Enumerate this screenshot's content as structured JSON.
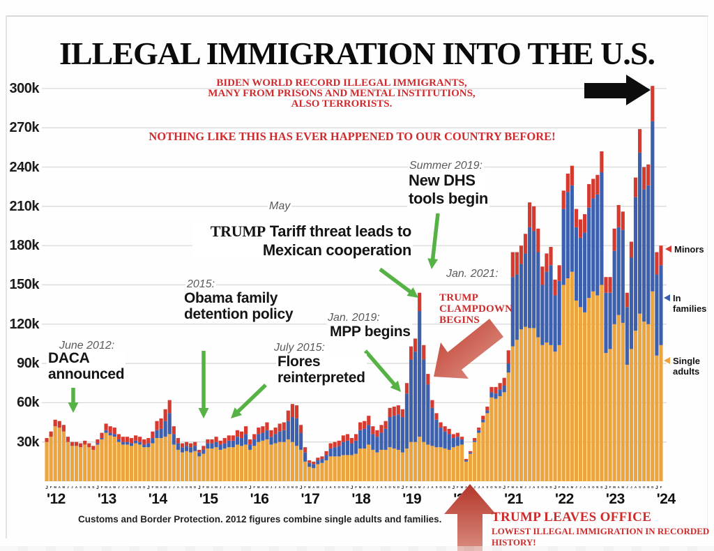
{
  "title": "ILLEGAL IMMIGRATION INTO THE U.S.",
  "header": {
    "line1": "BIDEN WORLD RECORD ILLEGAL IMMIGRANTS,",
    "line2": "MANY FROM PRISONS AND MENTAL INSTITUTIONS,",
    "line3": "ALSO TERRORISTS.",
    "line4": "NOTHING LIKE THIS HAS EVER HAPPENED TO OUR COUNTRY BEFORE!"
  },
  "annotations": {
    "daca": {
      "date": "June 2012:",
      "text": "DACA\nannounced"
    },
    "obama": {
      "date": "2015:",
      "text": "Obama family\ndetention policy"
    },
    "flores": {
      "date": "July 2015:",
      "text": "Flores\nreinterpreted"
    },
    "tariff": {
      "date": "May",
      "lead": "TRUMP",
      "rest": " Tariff threat leads to",
      "line2": "Mexican cooperation"
    },
    "mpp": {
      "date": "Jan. 2019:",
      "text": "MPP begins"
    },
    "dhs": {
      "date": "Summer 2019:",
      "text": "New DHS\ntools begin"
    },
    "jan2021": {
      "date": "Jan. 2021:"
    },
    "clampdown": {
      "text": "TRUMP\nCLAMPDOWN\nBEGINS"
    },
    "leaves_office": {
      "title": "TRUMP LEAVES OFFICE",
      "subtitle": "LOWEST ILLEGAL IMMIGRATION IN RECORDED HISTORY!"
    }
  },
  "legend": {
    "items": [
      {
        "label": "Minors",
        "color": "#d63a2f"
      },
      {
        "label": "In families",
        "color": "#3c60ae"
      },
      {
        "label": "Single adults",
        "color": "#eca43e"
      }
    ]
  },
  "footer": "Customs and Border Protection. 2012 figures combine single adults and families.",
  "colors": {
    "orange": "#eca43e",
    "blue": "#3c60ae",
    "red": "#d63a2f",
    "red_text": "#cd2b2b",
    "green_arrow": "#57b245",
    "grid": "#d9d9d9"
  },
  "chart_data": {
    "type": "bar",
    "stacked": true,
    "title": "ILLEGAL IMMIGRATION INTO THE U.S.",
    "unit": "monthly apprehensions/encounters, thousands",
    "source": "Customs and Border Protection. 2012 figures combine single adults and families.",
    "x_years": [
      "'12",
      "'13",
      "'14",
      "'15",
      "'16",
      "'17",
      "'18",
      "'19",
      "'20",
      "'21",
      "'22",
      "'23",
      "'24"
    ],
    "month_letters": "JFMAMJJASOND",
    "months_in_last_year": 2,
    "ylim": [
      0,
      310
    ],
    "grid": true,
    "y_tick_values": [
      30,
      60,
      90,
      120,
      150,
      180,
      210,
      240,
      270,
      300
    ],
    "y_tick_labels": [
      "30k",
      "60k",
      "90k",
      "120k",
      "150k",
      "180k",
      "210k",
      "240k",
      "270k",
      "300k"
    ],
    "series": [
      {
        "name": "Single adults",
        "color": "#eca43e",
        "values": [
          30,
          34,
          42,
          41,
          38,
          30,
          27,
          27,
          26,
          28,
          26,
          24,
          28,
          32,
          37,
          35,
          34,
          30,
          28,
          28,
          27,
          29,
          28,
          26,
          26,
          29,
          33,
          33,
          34,
          36,
          28,
          24,
          22,
          23,
          22,
          23,
          19,
          21,
          25,
          25,
          26,
          24,
          25,
          26,
          26,
          28,
          27,
          28,
          24,
          27,
          30,
          31,
          32,
          28,
          29,
          30,
          30,
          32,
          30,
          27,
          24,
          15,
          11,
          10,
          13,
          14,
          16,
          19,
          19,
          19,
          20,
          20,
          20,
          21,
          25,
          25,
          28,
          24,
          22,
          24,
          24,
          26,
          25,
          24,
          22,
          25,
          30,
          30,
          34,
          30,
          28,
          27,
          26,
          26,
          25,
          24,
          26,
          27,
          28,
          15,
          21,
          30,
          37,
          45,
          52,
          64,
          63,
          65,
          68,
          83,
          103,
          108,
          116,
          118,
          117,
          117,
          110,
          104,
          106,
          104,
          99,
          104,
          150,
          155,
          160,
          138,
          133,
          129,
          140,
          145,
          142,
          150,
          98,
          101,
          120,
          127,
          121,
          89,
          101,
          115,
          128,
          122,
          120,
          145,
          96,
          104
        ]
      },
      {
        "name": "In families",
        "color": "#3c60ae",
        "values": [
          0,
          0,
          0,
          0,
          0,
          0,
          0,
          0,
          0,
          0,
          0,
          0,
          1,
          1,
          2,
          2,
          2,
          2,
          2,
          2,
          2,
          2,
          2,
          2,
          3,
          4,
          6,
          7,
          12,
          16,
          8,
          5,
          4,
          4,
          4,
          4,
          3,
          3,
          4,
          4,
          4,
          4,
          4,
          5,
          5,
          6,
          6,
          8,
          4,
          5,
          6,
          6,
          7,
          6,
          7,
          8,
          9,
          14,
          19,
          21,
          13,
          7,
          3,
          3,
          3,
          3,
          4,
          6,
          7,
          8,
          10,
          11,
          9,
          10,
          14,
          15,
          15,
          12,
          12,
          13,
          16,
          23,
          25,
          27,
          27,
          42,
          63,
          69,
          96,
          63,
          46,
          29,
          21,
          15,
          13,
          12,
          7,
          7,
          4,
          1,
          1,
          1,
          2,
          2,
          2,
          4,
          4,
          5,
          5,
          7,
          53,
          50,
          50,
          56,
          77,
          74,
          65,
          46,
          54,
          61,
          43,
          49,
          58,
          66,
          66,
          56,
          53,
          61,
          69,
          71,
          77,
          86,
          46,
          43,
          56,
          67,
          71,
          44,
          70,
          102,
          123,
          101,
          106,
          130,
          62,
          61
        ]
      },
      {
        "name": "Minors",
        "color": "#d63a2f",
        "values": [
          3,
          4,
          5,
          5,
          5,
          4,
          3,
          3,
          3,
          3,
          3,
          3,
          3,
          4,
          5,
          5,
          5,
          4,
          4,
          4,
          4,
          4,
          4,
          4,
          4,
          5,
          7,
          8,
          9,
          10,
          6,
          4,
          3,
          3,
          3,
          3,
          2,
          3,
          3,
          3,
          4,
          3,
          4,
          4,
          4,
          5,
          5,
          6,
          4,
          4,
          5,
          5,
          6,
          5,
          5,
          6,
          6,
          8,
          10,
          10,
          6,
          4,
          2,
          2,
          2,
          2,
          3,
          4,
          4,
          4,
          5,
          5,
          4,
          5,
          6,
          6,
          7,
          6,
          5,
          6,
          6,
          7,
          7,
          7,
          6,
          8,
          10,
          10,
          14,
          11,
          8,
          6,
          5,
          4,
          4,
          4,
          3,
          3,
          2,
          1,
          1,
          2,
          2,
          3,
          3,
          4,
          5,
          5,
          6,
          10,
          19,
          17,
          14,
          15,
          19,
          19,
          18,
          14,
          14,
          14,
          12,
          12,
          14,
          14,
          15,
          14,
          14,
          14,
          18,
          15,
          15,
          16,
          12,
          12,
          17,
          17,
          14,
          11,
          12,
          15,
          18,
          17,
          16,
          27,
          17,
          15
        ]
      }
    ]
  }
}
